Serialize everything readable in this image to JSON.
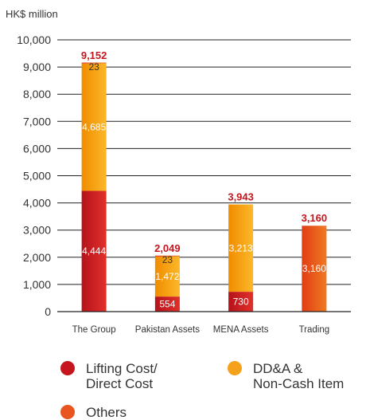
{
  "chart_data": {
    "type": "bar",
    "stacked": true,
    "unit_label": "HK$ million",
    "categories": [
      "The Group",
      "Pakistan Assets",
      "MENA Assets",
      "Trading"
    ],
    "y_ticks": [
      "0",
      "1,000",
      "2,000",
      "3,000",
      "4,000",
      "5,000",
      "6,000",
      "7,000",
      "8,000",
      "9,000",
      "10,000"
    ],
    "ylim": [
      0,
      10000
    ],
    "grid": true,
    "series": [
      {
        "key": "lifting",
        "values": [
          4444,
          554,
          730,
          null
        ],
        "labels": [
          "4,444",
          "554",
          "730",
          ""
        ],
        "color": "#c4161c",
        "gradient": [
          "#b5121b",
          "#e0302a"
        ]
      },
      {
        "key": "dda",
        "values": [
          4685,
          1472,
          3213,
          null
        ],
        "labels": [
          "4,685",
          "1,472",
          "3,213",
          ""
        ],
        "color": "#f5a11c",
        "gradient": [
          "#f08c00",
          "#fbb829"
        ]
      },
      {
        "key": "others",
        "values": [
          23,
          23,
          null,
          3160
        ],
        "labels": [
          "23",
          "23",
          "",
          "3,160"
        ],
        "color": "#e8551e",
        "gradient": [
          "#e03d16",
          "#f07a22"
        ]
      }
    ],
    "totals": [
      "9,152",
      "2,049",
      "3,943",
      "3,160"
    ],
    "total_values": [
      9152,
      2049,
      3943,
      3160
    ],
    "total_color": "#c4161c",
    "legend": [
      {
        "label": "Lifting Cost/\nDirect Cost",
        "color": "#c4161c"
      },
      {
        "label": "DD&A &\nNon-Cash Item",
        "color": "#f5a11c"
      },
      {
        "label": "Others",
        "color": "#e8551e"
      }
    ]
  }
}
